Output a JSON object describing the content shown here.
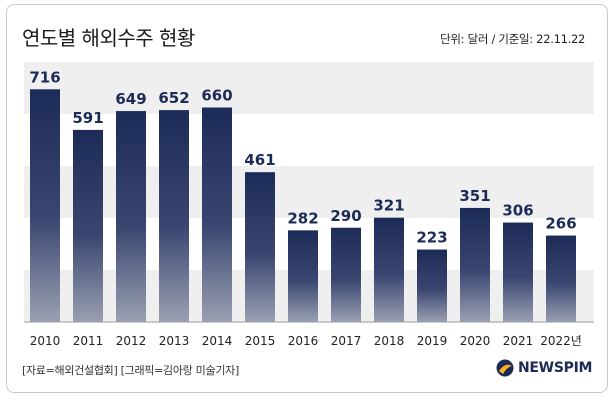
{
  "header": {
    "title": "연도별 해외수주 현황",
    "unit_note": "단위: 달러 / 기준일: 22.11.22"
  },
  "footer": {
    "source": "[자료=해외건설협회] [그래픽=김아랑 미술기자]",
    "logo_text": "NEWSPIM"
  },
  "colors": {
    "bar_top": "#1c2b57",
    "bar_bottom": "#9aa0b2",
    "band": "#efefef",
    "label": "#1c2b57",
    "logo_accent": "#f3b51c"
  },
  "chart_data": {
    "type": "bar",
    "title": "연도별 해외수주 현황",
    "categories": [
      "2010",
      "2011",
      "2012",
      "2013",
      "2014",
      "2015",
      "2016",
      "2017",
      "2018",
      "2019",
      "2020",
      "2021",
      "2022년"
    ],
    "values": [
      716,
      591,
      649,
      652,
      660,
      461,
      282,
      290,
      321,
      223,
      351,
      306,
      266
    ],
    "ylim": [
      0,
      800
    ],
    "grid": "alternating horizontal bands",
    "legend": "none"
  }
}
